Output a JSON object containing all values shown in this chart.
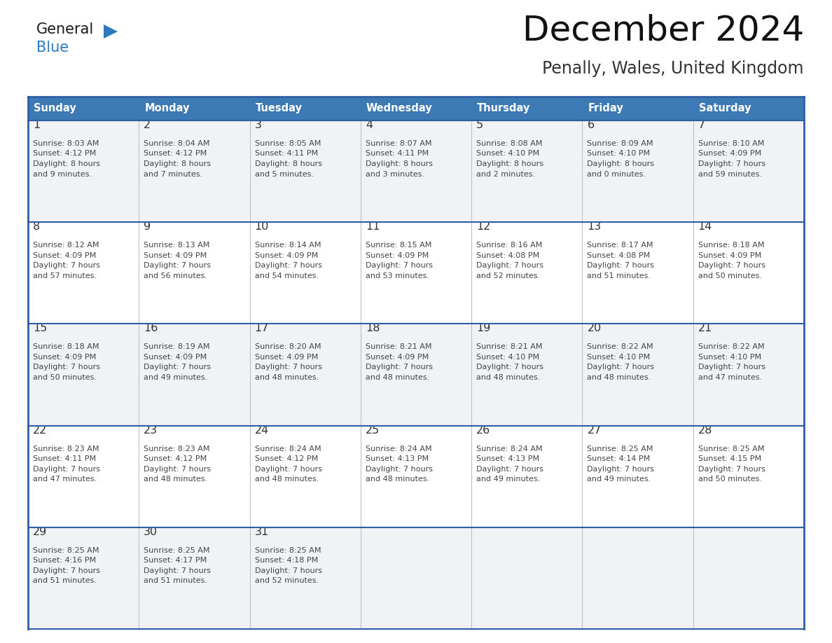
{
  "title": "December 2024",
  "subtitle": "Penally, Wales, United Kingdom",
  "header_color": "#3d7ab5",
  "header_text_color": "#ffffff",
  "cell_bg_white": "#ffffff",
  "cell_bg_gray": "#f0f2f5",
  "border_color": "#2e5fa3",
  "day_number_color": "#333333",
  "cell_text_color": "#444444",
  "days_of_week": [
    "Sunday",
    "Monday",
    "Tuesday",
    "Wednesday",
    "Thursday",
    "Friday",
    "Saturday"
  ],
  "weeks": [
    [
      {
        "day": "1",
        "sunrise": "8:03 AM",
        "sunset": "4:12 PM",
        "daylight_h": "8 hours",
        "daylight_m": "and 9 minutes."
      },
      {
        "day": "2",
        "sunrise": "8:04 AM",
        "sunset": "4:12 PM",
        "daylight_h": "8 hours",
        "daylight_m": "and 7 minutes."
      },
      {
        "day": "3",
        "sunrise": "8:05 AM",
        "sunset": "4:11 PM",
        "daylight_h": "8 hours",
        "daylight_m": "and 5 minutes."
      },
      {
        "day": "4",
        "sunrise": "8:07 AM",
        "sunset": "4:11 PM",
        "daylight_h": "8 hours",
        "daylight_m": "and 3 minutes."
      },
      {
        "day": "5",
        "sunrise": "8:08 AM",
        "sunset": "4:10 PM",
        "daylight_h": "8 hours",
        "daylight_m": "and 2 minutes."
      },
      {
        "day": "6",
        "sunrise": "8:09 AM",
        "sunset": "4:10 PM",
        "daylight_h": "8 hours",
        "daylight_m": "and 0 minutes."
      },
      {
        "day": "7",
        "sunrise": "8:10 AM",
        "sunset": "4:09 PM",
        "daylight_h": "7 hours",
        "daylight_m": "and 59 minutes."
      }
    ],
    [
      {
        "day": "8",
        "sunrise": "8:12 AM",
        "sunset": "4:09 PM",
        "daylight_h": "7 hours",
        "daylight_m": "and 57 minutes."
      },
      {
        "day": "9",
        "sunrise": "8:13 AM",
        "sunset": "4:09 PM",
        "daylight_h": "7 hours",
        "daylight_m": "and 56 minutes."
      },
      {
        "day": "10",
        "sunrise": "8:14 AM",
        "sunset": "4:09 PM",
        "daylight_h": "7 hours",
        "daylight_m": "and 54 minutes."
      },
      {
        "day": "11",
        "sunrise": "8:15 AM",
        "sunset": "4:09 PM",
        "daylight_h": "7 hours",
        "daylight_m": "and 53 minutes."
      },
      {
        "day": "12",
        "sunrise": "8:16 AM",
        "sunset": "4:08 PM",
        "daylight_h": "7 hours",
        "daylight_m": "and 52 minutes."
      },
      {
        "day": "13",
        "sunrise": "8:17 AM",
        "sunset": "4:08 PM",
        "daylight_h": "7 hours",
        "daylight_m": "and 51 minutes."
      },
      {
        "day": "14",
        "sunrise": "8:18 AM",
        "sunset": "4:09 PM",
        "daylight_h": "7 hours",
        "daylight_m": "and 50 minutes."
      }
    ],
    [
      {
        "day": "15",
        "sunrise": "8:18 AM",
        "sunset": "4:09 PM",
        "daylight_h": "7 hours",
        "daylight_m": "and 50 minutes."
      },
      {
        "day": "16",
        "sunrise": "8:19 AM",
        "sunset": "4:09 PM",
        "daylight_h": "7 hours",
        "daylight_m": "and 49 minutes."
      },
      {
        "day": "17",
        "sunrise": "8:20 AM",
        "sunset": "4:09 PM",
        "daylight_h": "7 hours",
        "daylight_m": "and 48 minutes."
      },
      {
        "day": "18",
        "sunrise": "8:21 AM",
        "sunset": "4:09 PM",
        "daylight_h": "7 hours",
        "daylight_m": "and 48 minutes."
      },
      {
        "day": "19",
        "sunrise": "8:21 AM",
        "sunset": "4:10 PM",
        "daylight_h": "7 hours",
        "daylight_m": "and 48 minutes."
      },
      {
        "day": "20",
        "sunrise": "8:22 AM",
        "sunset": "4:10 PM",
        "daylight_h": "7 hours",
        "daylight_m": "and 48 minutes."
      },
      {
        "day": "21",
        "sunrise": "8:22 AM",
        "sunset": "4:10 PM",
        "daylight_h": "7 hours",
        "daylight_m": "and 47 minutes."
      }
    ],
    [
      {
        "day": "22",
        "sunrise": "8:23 AM",
        "sunset": "4:11 PM",
        "daylight_h": "7 hours",
        "daylight_m": "and 47 minutes."
      },
      {
        "day": "23",
        "sunrise": "8:23 AM",
        "sunset": "4:12 PM",
        "daylight_h": "7 hours",
        "daylight_m": "and 48 minutes."
      },
      {
        "day": "24",
        "sunrise": "8:24 AM",
        "sunset": "4:12 PM",
        "daylight_h": "7 hours",
        "daylight_m": "and 48 minutes."
      },
      {
        "day": "25",
        "sunrise": "8:24 AM",
        "sunset": "4:13 PM",
        "daylight_h": "7 hours",
        "daylight_m": "and 48 minutes."
      },
      {
        "day": "26",
        "sunrise": "8:24 AM",
        "sunset": "4:13 PM",
        "daylight_h": "7 hours",
        "daylight_m": "and 49 minutes."
      },
      {
        "day": "27",
        "sunrise": "8:25 AM",
        "sunset": "4:14 PM",
        "daylight_h": "7 hours",
        "daylight_m": "and 49 minutes."
      },
      {
        "day": "28",
        "sunrise": "8:25 AM",
        "sunset": "4:15 PM",
        "daylight_h": "7 hours",
        "daylight_m": "and 50 minutes."
      }
    ],
    [
      {
        "day": "29",
        "sunrise": "8:25 AM",
        "sunset": "4:16 PM",
        "daylight_h": "7 hours",
        "daylight_m": "and 51 minutes."
      },
      {
        "day": "30",
        "sunrise": "8:25 AM",
        "sunset": "4:17 PM",
        "daylight_h": "7 hours",
        "daylight_m": "and 51 minutes."
      },
      {
        "day": "31",
        "sunrise": "8:25 AM",
        "sunset": "4:18 PM",
        "daylight_h": "7 hours",
        "daylight_m": "and 52 minutes."
      },
      null,
      null,
      null,
      null
    ]
  ],
  "logo_general_color": "#1a1a1a",
  "logo_blue_color": "#2b7abf",
  "logo_triangle_color": "#2b7abf"
}
